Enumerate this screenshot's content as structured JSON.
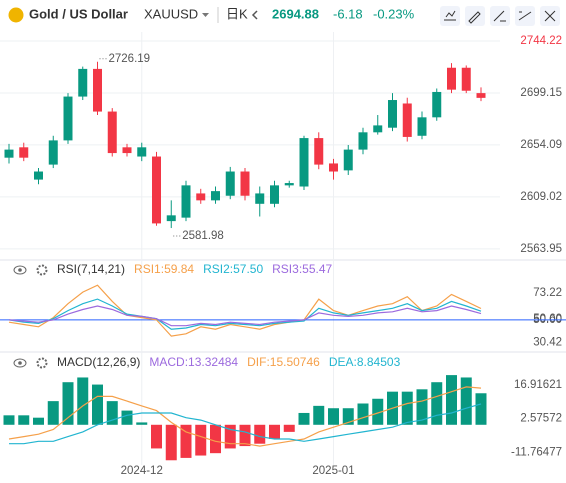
{
  "header": {
    "name": "Gold / US Dollar",
    "symbol": "XAUUSD",
    "interval": "日K",
    "change": "-6.18",
    "change_pct": "-0.23%"
  },
  "chart_data": [
    {
      "type": "candlestick",
      "categories": [
        null,
        null,
        null,
        null,
        null,
        null,
        null,
        null,
        null,
        "2024-12",
        null,
        null,
        null,
        null,
        null,
        null,
        null,
        null,
        null,
        null,
        null,
        null,
        "2025-01",
        null,
        null,
        null,
        null,
        null,
        null,
        null,
        null,
        null,
        null
      ],
      "open": [
        2643,
        2652,
        2624,
        2637,
        2658,
        2696,
        2720,
        2683,
        2652,
        2644,
        2644,
        2588,
        2591,
        2612,
        2606,
        2610,
        2631,
        2603,
        2603,
        2619,
        2618,
        2660,
        2638,
        2632,
        2650,
        2665,
        2669,
        2690,
        2662,
        2678,
        2721,
        2721,
        2699
      ],
      "high": [
        2655,
        2656,
        2634,
        2662,
        2699,
        2722,
        2726.19,
        2686,
        2655,
        2656,
        2648,
        2606,
        2623,
        2616,
        2618,
        2635,
        2634,
        2618,
        2623,
        2623,
        2662,
        2665,
        2642,
        2654,
        2669,
        2680,
        2699,
        2695,
        2683,
        2703,
        2725,
        2723,
        2704
      ],
      "low": [
        2638,
        2640,
        2620,
        2634,
        2655,
        2693,
        2680,
        2644,
        2644,
        2640,
        2584,
        2581.98,
        2588,
        2603,
        2603,
        2607,
        2606,
        2592,
        2600,
        2617,
        2615,
        2633,
        2624,
        2628,
        2646,
        2663,
        2666,
        2657,
        2659,
        2675,
        2699,
        2699,
        2692
      ],
      "close": [
        2650,
        2643,
        2631,
        2658,
        2696,
        2720,
        2683,
        2647,
        2647,
        2652,
        2586,
        2593,
        2619,
        2606,
        2614,
        2631,
        2610,
        2612,
        2619,
        2621,
        2660,
        2637,
        2631,
        2650,
        2665,
        2671,
        2693,
        2661,
        2678,
        2700,
        2702,
        2701.06,
        2694.88
      ],
      "up_color": "#089981",
      "down_color": "#f23645",
      "ylim": [
        2556,
        2752
      ],
      "yticks": [
        2744.22,
        2699.15,
        2654.09,
        2609.02,
        2563.95
      ],
      "grid": true
    },
    {
      "type": "line",
      "title": "RSI(7,14,21)",
      "series": [
        {
          "name": "RSI1:",
          "color": "#f5a04a",
          "values": [
            48,
            46,
            44,
            52,
            64,
            74,
            80,
            66,
            54,
            52,
            50,
            36,
            38,
            44,
            42,
            46,
            44,
            42,
            46,
            48,
            50,
            68,
            58,
            54,
            58,
            62,
            64,
            70,
            58,
            62,
            72,
            66,
            59.84
          ]
        },
        {
          "name": "RSI2:",
          "color": "#22b5d0",
          "values": [
            50,
            48,
            47,
            51,
            58,
            64,
            68,
            62,
            55,
            53,
            51,
            42,
            43,
            46,
            45,
            47,
            46,
            45,
            47,
            48,
            49,
            60,
            56,
            54,
            56,
            58,
            60,
            64,
            58,
            60,
            66,
            62,
            57.5
          ],
          "value_labels": [
            null,
            null,
            null,
            null,
            null,
            null,
            null,
            null,
            null,
            null,
            null,
            null,
            null,
            null,
            null,
            null,
            null,
            null,
            null,
            null,
            null,
            null,
            null,
            null,
            null,
            null,
            null,
            null,
            null,
            null,
            null,
            null,
            "57.50"
          ]
        },
        {
          "name": "RSI3:",
          "color": "#9c6ade",
          "values": [
            50,
            49,
            48,
            50,
            55,
            59,
            62,
            59,
            54,
            53,
            51,
            45,
            45,
            47,
            46,
            48,
            47,
            46,
            48,
            49,
            50,
            56,
            54,
            53,
            54,
            56,
            57,
            60,
            57,
            58,
            62,
            59,
            55.47
          ]
        }
      ],
      "ylim": [
        24,
        100
      ],
      "yticks": [
        73.22,
        {
          "value": 50.6,
          "label": "50.60"
        },
        {
          "value": 50,
          "label": "50.00"
        },
        30.42
      ],
      "ref_line": 50,
      "ref_color": "#2962ff"
    },
    {
      "type": "macd",
      "title": "MACD(12,26,9)",
      "histogram": {
        "name": "MACD:",
        "color": "#9c6ade",
        "values": [
          4,
          4,
          3,
          10,
          18,
          20,
          17,
          10,
          6,
          1,
          -10,
          -15,
          -14,
          -13,
          -12,
          -10,
          -9,
          -8,
          -6,
          -3,
          5,
          8,
          7,
          7,
          9,
          11,
          14,
          14,
          15,
          18,
          21,
          20,
          13.32484
        ]
      },
      "up_color": "#089981",
      "down_color": "#f23645",
      "series": [
        {
          "name": "DIF:",
          "color": "#f5a04a",
          "values": [
            -6,
            -5,
            -4,
            -2,
            3,
            8,
            12,
            12,
            10,
            8,
            6,
            1,
            -3,
            -5,
            -7,
            -8,
            -8,
            -9,
            -8,
            -7,
            -6,
            -3,
            -1,
            1,
            3,
            5,
            7,
            9,
            10,
            12,
            14,
            16,
            15.50746
          ]
        },
        {
          "name": "DEA:",
          "color": "#22b5d0",
          "values": [
            -8,
            -8,
            -7,
            -7,
            -5,
            -3,
            0,
            2,
            4,
            5,
            5,
            5,
            3,
            2,
            0,
            -2,
            -3,
            -5,
            -6,
            -6,
            -7,
            -6,
            -5,
            -4,
            -3,
            -2,
            -1,
            1,
            2,
            4,
            5,
            7,
            8.84503
          ]
        }
      ],
      "ylim": [
        -17,
        29.5
      ],
      "yticks": [
        16.91621,
        2.57572,
        -11.76477
      ]
    }
  ]
}
